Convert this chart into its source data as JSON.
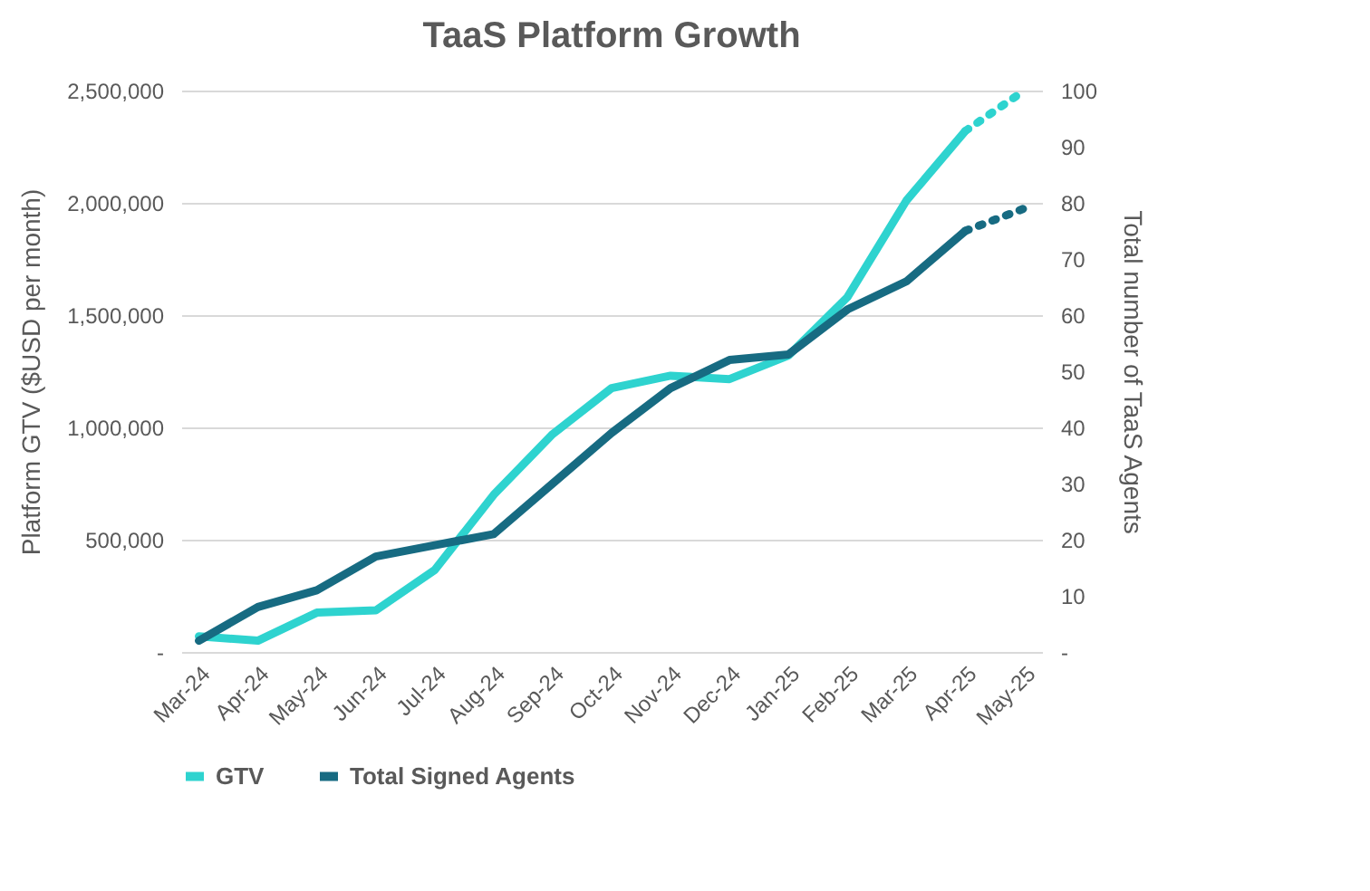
{
  "chart_data": {
    "type": "line",
    "title": "TaaS Platform Growth",
    "ylabel": "Platform GTV ($USD per month)",
    "y2label": "Total number of TaaS Agents",
    "categories": [
      "Mar-24",
      "Apr-24",
      "May-24",
      "Jun-24",
      "Jul-24",
      "Aug-24",
      "Sep-24",
      "Oct-24",
      "Nov-24",
      "Dec-24",
      "Jan-25",
      "Feb-25",
      "Mar-25",
      "Apr-25",
      "May-25"
    ],
    "series": [
      {
        "name": "GTV",
        "color": "#2ed3cf",
        "line_style": "solid",
        "values": [
          70000,
          50000,
          175000,
          185000,
          365000,
          700000,
          970000,
          1175000,
          1230000,
          1215000,
          1320000,
          1580000,
          2010000,
          2320000,
          null
        ]
      },
      {
        "name": "Total Signed Agents",
        "color": "#176b82",
        "axis": "y2",
        "line_style": "solid",
        "values": [
          2,
          8,
          11,
          17,
          19,
          21,
          30,
          39,
          47,
          52,
          53,
          61,
          66,
          75,
          null
        ]
      },
      {
        "color": "#2ed3cf",
        "line_style": "dotted",
        "values": [
          null,
          null,
          null,
          null,
          null,
          null,
          null,
          null,
          null,
          null,
          null,
          null,
          null,
          2320000,
          2500000
        ]
      },
      {
        "color": "#176b82",
        "axis": "y2",
        "line_style": "dotted",
        "values": [
          null,
          null,
          null,
          null,
          null,
          null,
          null,
          null,
          null,
          null,
          null,
          null,
          null,
          75,
          79
        ]
      }
    ],
    "ylim": [
      0,
      2500000
    ],
    "yticks": [
      {
        "value": 0,
        "label": "-"
      },
      {
        "value": 500000,
        "label": "500,000"
      },
      {
        "value": 1000000,
        "label": "1,000,000"
      },
      {
        "value": 1500000,
        "label": "1,500,000"
      },
      {
        "value": 2000000,
        "label": "2,000,000"
      },
      {
        "value": 2500000,
        "label": "2,500,000"
      }
    ],
    "y2lim": [
      0,
      100
    ],
    "y2ticks": [
      {
        "value": 0,
        "label": "-"
      },
      10,
      20,
      30,
      40,
      50,
      60,
      70,
      80,
      90,
      100
    ],
    "grid": "y",
    "legend": "bottom",
    "marker": "none"
  }
}
